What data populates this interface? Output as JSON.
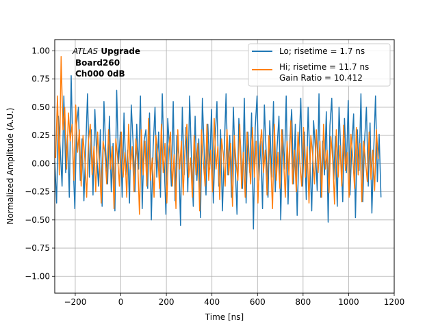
{
  "chart_data": {
    "type": "line",
    "title": "",
    "xlabel": "Time [ns]",
    "ylabel": "Normalized Amplitude (A.U.)",
    "xlim": [
      -290,
      1200
    ],
    "ylim": [
      -1.15,
      1.1
    ],
    "xticks": [
      -200,
      0,
      200,
      400,
      600,
      800,
      1000,
      1200
    ],
    "yticks": [
      -1.0,
      -0.75,
      -0.5,
      -0.25,
      0.0,
      0.25,
      0.5,
      0.75,
      1.0
    ],
    "xtick_labels": [
      "−200",
      "0",
      "200",
      "400",
      "600",
      "800",
      "1000",
      "1200"
    ],
    "ytick_labels": [
      "−1.00",
      "−0.75",
      "−0.50",
      "−0.25",
      "0.00",
      "0.25",
      "0.50",
      "0.75",
      "1.00"
    ],
    "grid": true,
    "legend_position": "top-right",
    "annotation": {
      "atlas": "ATLAS",
      "upgrade": "Upgrade",
      "board": "Board260",
      "channel": "Ch000 0dB"
    },
    "series": [
      {
        "name": "Lo; risetime = 1.7 ns",
        "color": "#1f77b4",
        "x_start": -290,
        "x_step": 8,
        "values": [
          0.02,
          -0.35,
          0.42,
          0.13,
          -0.2,
          0.6,
          -0.08,
          0.25,
          -0.3,
          0.78,
          0.05,
          -0.4,
          0.35,
          0.5,
          -0.15,
          0.22,
          -0.33,
          0.15,
          0.62,
          -0.12,
          0.3,
          -0.28,
          0.48,
          0.08,
          -0.2,
          0.3,
          -0.38,
          0.55,
          0.1,
          -0.18,
          0.42,
          -0.25,
          0.18,
          -0.42,
          0.65,
          0.0,
          0.28,
          -0.3,
          0.45,
          -0.1,
          0.12,
          -0.35,
          0.52,
          0.18,
          -0.25,
          0.35,
          -0.05,
          0.6,
          -0.4,
          0.2,
          0.3,
          -0.22,
          0.45,
          -0.5,
          0.15,
          0.5,
          -0.12,
          0.28,
          -0.3,
          0.62,
          0.02,
          -0.45,
          0.4,
          0.12,
          -0.2,
          0.55,
          -0.33,
          0.25,
          0.08,
          -0.55,
          0.5,
          -0.1,
          0.32,
          -0.25,
          0.6,
          0.05,
          -0.38,
          0.42,
          -0.15,
          0.22,
          -0.48,
          0.58,
          0.1,
          -0.28,
          0.35,
          -0.05,
          0.48,
          -0.35,
          0.2,
          0.55,
          -0.2,
          0.3,
          -0.42,
          0.12,
          0.62,
          -0.1,
          0.25,
          -0.3,
          0.5,
          0.0,
          -0.45,
          0.4,
          0.15,
          -0.22,
          0.58,
          -0.35,
          0.28,
          -0.08,
          0.45,
          -0.58,
          0.32,
          0.6,
          -0.15,
          0.2,
          -0.4,
          0.52,
          0.1,
          -0.3,
          0.38,
          -0.12,
          0.55,
          -0.25,
          0.15,
          0.42,
          -0.5,
          0.3,
          -0.05,
          0.6,
          -0.36,
          0.22,
          0.48,
          -0.18,
          0.35,
          -0.46,
          0.12,
          0.58,
          -0.2,
          0.28,
          -0.32,
          0.5,
          0.04,
          -0.42,
          0.38,
          0.14,
          -0.24,
          0.62,
          -0.3,
          0.2,
          -0.1,
          0.46,
          -0.52,
          0.34,
          0.58,
          -0.14,
          0.24,
          -0.38,
          0.5,
          0.08,
          -0.34,
          0.4,
          -0.08,
          0.56,
          -0.28,
          0.16,
          0.44,
          -0.48,
          0.3,
          -0.06,
          0.62,
          -0.34,
          0.2,
          0.5,
          -0.2,
          0.36,
          -0.44,
          0.1,
          0.6,
          -0.16,
          0.26,
          -0.3
        ]
      },
      {
        "name": "Hi; risetime = 11.7 ns\n Gain Ratio = 10.412",
        "color": "#ff7f0e",
        "x_start": -286,
        "x_step": 8,
        "values": [
          0.05,
          0.6,
          -0.1,
          0.95,
          0.3,
          0.5,
          -0.05,
          0.45,
          0.2,
          0.35,
          -0.15,
          0.52,
          0.1,
          0.3,
          -0.2,
          0.25,
          0.05,
          -0.3,
          0.2,
          0.35,
          -0.1,
          0.15,
          -0.25,
          0.28,
          0.0,
          -0.35,
          0.2,
          0.1,
          -0.18,
          0.3,
          -0.05,
          0.15,
          -0.4,
          0.22,
          0.05,
          -0.2,
          0.28,
          -0.12,
          0.1,
          -0.3,
          0.35,
          -0.05,
          0.15,
          -0.25,
          0.22,
          0.02,
          -0.45,
          0.3,
          -0.1,
          0.2,
          -0.2,
          0.4,
          -0.15,
          0.05,
          -0.3,
          0.25,
          0.1,
          -0.22,
          0.35,
          -0.08,
          0.18,
          -0.35,
          0.12,
          0.28,
          -0.2,
          0.08,
          -0.4,
          0.3,
          -0.05,
          0.2,
          -0.28,
          0.15,
          0.35,
          -0.12,
          0.05,
          -0.3,
          0.25,
          -0.1,
          0.18,
          -0.42,
          0.3,
          0.02,
          -0.2,
          0.35,
          -0.15,
          0.12,
          -0.25,
          0.4,
          -0.05,
          0.15,
          -0.32,
          0.22,
          0.08,
          -0.2,
          0.3,
          -0.1,
          0.18,
          -0.38,
          0.25,
          0.0,
          -0.15,
          0.35,
          -0.22,
          0.1,
          -0.3,
          0.28,
          0.05,
          -0.18,
          0.32,
          -0.12,
          0.2,
          -0.35,
          0.15,
          0.3,
          -0.08,
          0.12,
          -0.28,
          0.25,
          -0.02,
          -0.4,
          0.35,
          -0.15,
          0.1,
          -0.22,
          0.3,
          0.05,
          -0.3,
          0.2,
          -0.1,
          0.38,
          -0.18,
          0.12,
          -0.25,
          0.28,
          0.0,
          -0.2,
          0.32,
          -0.12,
          0.15,
          -0.35,
          0.25,
          0.08,
          -0.18,
          0.3,
          -0.08,
          0.2,
          -0.3,
          0.35,
          -0.05,
          0.12,
          -0.26,
          0.24,
          0.04,
          -0.36,
          0.3,
          -0.12,
          0.16,
          -0.2,
          0.34,
          -0.06,
          0.1,
          -0.3,
          0.26,
          0.06,
          -0.22,
          0.32,
          -0.1,
          0.18,
          -0.34,
          0.2,
          0.02,
          -0.16,
          0.28,
          -0.14,
          0.12,
          -0.24,
          0.3,
          0.04
        ]
      }
    ]
  }
}
